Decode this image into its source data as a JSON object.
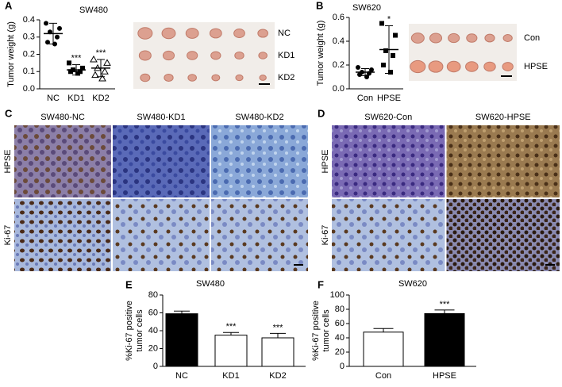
{
  "chart_data": [
    {
      "type": "dotplot",
      "panel": "A",
      "title": "SW480",
      "ylabel": "Tumor weight (g)",
      "categories": [
        "NC",
        "KD1",
        "KD2"
      ],
      "markers": [
        "circle",
        "square",
        "triangle"
      ],
      "points": [
        [
          0.38,
          0.35,
          0.33,
          0.3,
          0.27,
          0.26
        ],
        [
          0.15,
          0.12,
          0.11,
          0.1,
          0.1,
          0.09
        ],
        [
          0.17,
          0.15,
          0.12,
          0.1,
          0.08,
          0.06
        ]
      ],
      "means": [
        0.32,
        0.11,
        0.12
      ],
      "sd": [
        0.06,
        0.03,
        0.05
      ],
      "annotations": [
        null,
        "***",
        "***"
      ],
      "color": "#000000",
      "ylim": [
        0,
        0.4
      ],
      "yticks": [
        {
          "value": 0,
          "label": "0.0"
        },
        0.1,
        0.2,
        0.3,
        0.4
      ]
    },
    {
      "type": "dotplot",
      "panel": "B",
      "title": "SW620",
      "ylabel": "Tumor weight (g)",
      "categories": [
        "Con",
        "HPSE"
      ],
      "markers": [
        "circle",
        "square"
      ],
      "points": [
        [
          0.18,
          0.16,
          0.14,
          0.13,
          0.12,
          0.1
        ],
        [
          0.55,
          0.45,
          0.32,
          0.28,
          0.2,
          0.14
        ]
      ],
      "means": [
        0.14,
        0.33
      ],
      "sd": [
        0.03,
        0.2
      ],
      "annotations": [
        null,
        "*"
      ],
      "color": "#000000",
      "ylim": [
        0,
        0.6
      ],
      "yticks": [
        {
          "value": 0,
          "label": "0.0"
        },
        0.2,
        0.4,
        0.6
      ]
    },
    {
      "type": "bar",
      "panel": "E",
      "title": "SW480",
      "ylabel": [
        "%Ki-67 positive",
        "tumor cells"
      ],
      "categories": [
        "NC",
        "KD1",
        "KD2"
      ],
      "values": [
        59,
        35,
        32
      ],
      "errors": [
        3,
        3,
        5
      ],
      "colors": [
        "#000000",
        "#ffffff",
        "#ffffff"
      ],
      "annotations": [
        null,
        "***",
        "***"
      ],
      "ylim": [
        0,
        80
      ],
      "yticks": [
        0,
        20,
        40,
        60,
        80
      ]
    },
    {
      "type": "bar",
      "panel": "F",
      "title": "SW620",
      "ylabel": [
        "%Ki-67 positive",
        "tumor cells"
      ],
      "categories": [
        "Con",
        "HPSE"
      ],
      "values": [
        48,
        74
      ],
      "errors": [
        5,
        5
      ],
      "colors": [
        "#ffffff",
        "#000000"
      ],
      "annotations": [
        null,
        "***"
      ],
      "ylim": [
        0,
        100
      ],
      "yticks": [
        0,
        20,
        40,
        60,
        80,
        100
      ]
    }
  ],
  "tumor_photos": [
    {
      "labels": [
        "NC",
        "KD1",
        "KD2"
      ]
    },
    {
      "labels": [
        "Con",
        "HPSE"
      ]
    }
  ],
  "ihc_panels": [
    {
      "panel": "C",
      "columns": [
        "SW480-NC",
        "SW480-KD1",
        "SW480-KD2"
      ],
      "rows": [
        "HPSE",
        "Ki-67"
      ]
    },
    {
      "panel": "D",
      "columns": [
        "SW620-Con",
        "SW620-HPSE"
      ],
      "rows": [
        "HPSE",
        "Ki-67"
      ]
    }
  ]
}
